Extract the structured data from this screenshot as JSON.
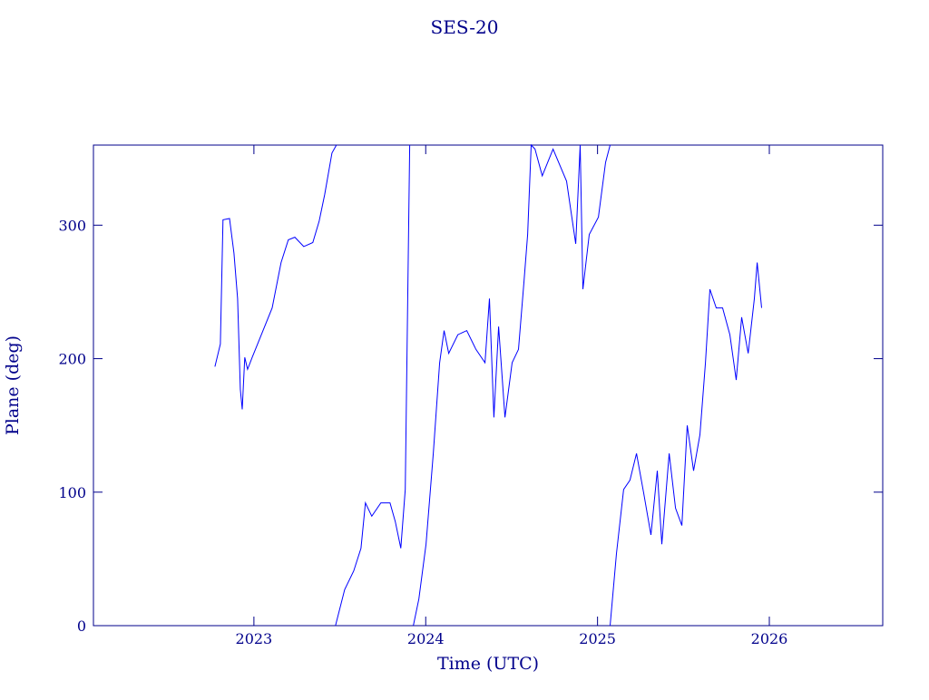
{
  "chart_data": {
    "type": "line",
    "title": "SES-20",
    "x_label": "Time (UTC)",
    "y_label": "Plane (deg)",
    "xlim": [
      2022.066,
      2026.66
    ],
    "ylim": [
      0,
      360
    ],
    "xticks": [
      2023,
      2024,
      2025,
      2026
    ],
    "yticks": [
      0,
      100,
      200,
      300
    ],
    "series": [
      {
        "name": "SES-20",
        "color": "#0000ff",
        "x": [
          2022.773,
          2022.805,
          2022.82,
          2022.858,
          2022.884,
          2022.905,
          2022.921,
          2022.932,
          2022.947,
          2022.963,
          2022.99,
          2023.106,
          2023.158,
          2023.2,
          2023.238,
          2023.29,
          2023.343,
          2023.38,
          2023.412,
          2023.454,
          2023.48,
          2023.48,
          2023.475,
          2023.528,
          2023.581,
          2023.623,
          2023.649,
          2023.686,
          2023.739,
          2023.792,
          2023.823,
          2023.855,
          2023.881,
          2023.907,
          2023.907,
          2023.928,
          2023.96,
          2024.002,
          2024.044,
          2024.081,
          2024.107,
          2024.134,
          2024.187,
          2024.239,
          2024.292,
          2024.345,
          2024.371,
          2024.397,
          2024.424,
          2024.461,
          2024.503,
          2024.54,
          2024.572,
          2024.593,
          2024.614,
          2024.636,
          2024.678,
          2024.741,
          2024.82,
          2024.873,
          2024.899,
          2024.915,
          2024.952,
          2025.005,
          2025.047,
          2025.073,
          2025.073,
          2025.073,
          2025.11,
          2025.152,
          2025.189,
          2025.227,
          2025.269,
          2025.311,
          2025.348,
          2025.374,
          2025.417,
          2025.454,
          2025.491,
          2025.522,
          2025.559,
          2025.596,
          2025.628,
          2025.654,
          2025.691,
          2025.728,
          2025.77,
          2025.807,
          2025.839,
          2025.877,
          2025.913,
          2025.929,
          2025.955
        ],
        "values": [
          194,
          211,
          304,
          305,
          279,
          245,
          177,
          162,
          201,
          192,
          201,
          238,
          272,
          289,
          291,
          284,
          287,
          303,
          323,
          354,
          360,
          null,
          0,
          27,
          41,
          58,
          92,
          82,
          92,
          92,
          78,
          58,
          102,
          360,
          null,
          0,
          20,
          61,
          129,
          197,
          221,
          204,
          218,
          221,
          207,
          197,
          245,
          156,
          224,
          156,
          197,
          207,
          258,
          293,
          360,
          357,
          337,
          357,
          333,
          286,
          360,
          252,
          293,
          306,
          347,
          360,
          null,
          0,
          54,
          102,
          109,
          129,
          99,
          68,
          116,
          61,
          129,
          88,
          75,
          150,
          116,
          143,
          197,
          252,
          238,
          238,
          218,
          184,
          231,
          204,
          245,
          272,
          238
        ]
      }
    ]
  }
}
